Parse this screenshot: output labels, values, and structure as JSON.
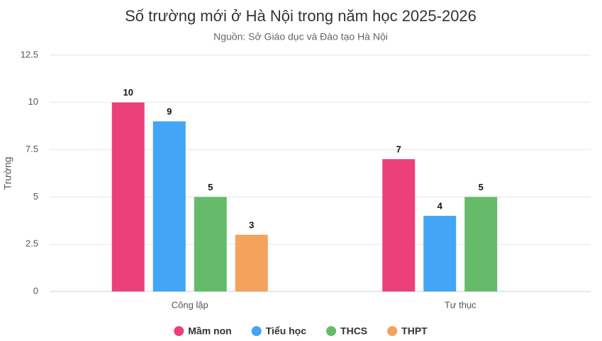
{
  "chart_data": {
    "type": "bar",
    "title": "Số trường mới ở Hà Nội trong năm học 2025-2026",
    "subtitle": "Nguồn: Sở Giáo dục và Đào tạo Hà Nội",
    "y_label": "Trường",
    "categories": [
      "Công lập",
      "Tư thục"
    ],
    "series": [
      {
        "name": "Mầm non",
        "color": "#ec407a",
        "values": [
          10,
          7
        ]
      },
      {
        "name": "Tiểu học",
        "color": "#42a5f5",
        "values": [
          9,
          4
        ]
      },
      {
        "name": "THCS",
        "color": "#66bb6a",
        "values": [
          5,
          5
        ]
      },
      {
        "name": "THPT",
        "color": "#f5a25d",
        "values": [
          3,
          null
        ]
      }
    ],
    "ylim": [
      0,
      12.5
    ],
    "yticks": [
      0,
      2.5,
      5,
      7.5,
      10,
      12.5
    ],
    "grid": true,
    "legend": "bottom"
  }
}
